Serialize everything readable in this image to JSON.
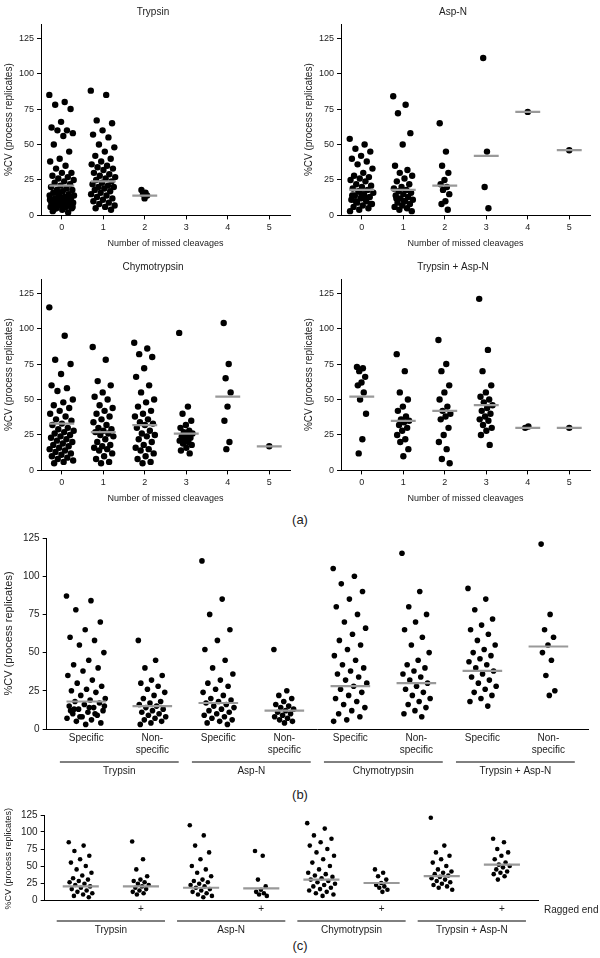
{
  "panel_labels": [
    "(a)",
    "(b)",
    "(c)"
  ],
  "chart_data": [
    {
      "type": "scatter",
      "title": "Trypsin",
      "x_label": "Number of missed cleavages",
      "y_label": "%CV (process replicates)",
      "xlim": [
        -0.5,
        5.5
      ],
      "xticks": [
        0,
        1,
        2,
        3,
        4,
        5
      ],
      "ylim": [
        0,
        135
      ],
      "yticks": [
        0,
        25,
        50,
        75,
        100,
        125
      ],
      "color": "#000000",
      "x": [
        0,
        1,
        2
      ],
      "values": [
        [
          85,
          80,
          78,
          75,
          66,
          62,
          60,
          60,
          58,
          56,
          50,
          45,
          40,
          38,
          35,
          33,
          30,
          30,
          28,
          27,
          26,
          25,
          24,
          23,
          22,
          21,
          20,
          19,
          18,
          18,
          17,
          16,
          15,
          15,
          14,
          13,
          12,
          12,
          11,
          10,
          10,
          9,
          9,
          8,
          8,
          7,
          7,
          6,
          6,
          5,
          5,
          4,
          3,
          2,
          15,
          14,
          13,
          12,
          11,
          10,
          9,
          8,
          7,
          6,
          5,
          4,
          13,
          12,
          11,
          10,
          9,
          8
        ],
        [
          88,
          85,
          67,
          65,
          60,
          57,
          55,
          50,
          48,
          45,
          42,
          40,
          38,
          36,
          35,
          34,
          33,
          32,
          30,
          29,
          28,
          27,
          26,
          25,
          24,
          23,
          22,
          21,
          20,
          20,
          19,
          18,
          17,
          16,
          15,
          14,
          13,
          12,
          11,
          10,
          9,
          8,
          7,
          6,
          5,
          4
        ],
        [
          18,
          16,
          15,
          14,
          12
        ]
      ],
      "means": [
        21,
        24,
        14
      ]
    },
    {
      "type": "scatter",
      "title": "Asp-N",
      "x_label": "Number of missed cleavages",
      "y_label": "%CV (process replicates)",
      "xlim": [
        -0.5,
        5.5
      ],
      "xticks": [
        0,
        1,
        2,
        3,
        4,
        5
      ],
      "ylim": [
        0,
        135
      ],
      "yticks": [
        0,
        25,
        50,
        75,
        100,
        125
      ],
      "color": "#000000",
      "x": [
        0,
        1,
        2,
        3,
        4,
        5
      ],
      "values": [
        [
          54,
          50,
          47,
          45,
          42,
          40,
          38,
          36,
          33,
          30,
          28,
          27,
          26,
          25,
          24,
          22,
          21,
          20,
          19,
          18,
          17,
          16,
          15,
          14,
          13,
          12,
          11,
          10,
          9,
          8,
          7,
          6,
          5,
          4,
          3,
          12,
          10,
          8,
          15,
          14
        ],
        [
          84,
          78,
          72,
          58,
          50,
          35,
          32,
          30,
          28,
          26,
          24,
          22,
          20,
          19,
          18,
          17,
          16,
          15,
          14,
          13,
          12,
          11,
          10,
          9,
          8,
          7,
          6,
          5,
          4,
          3,
          10,
          12
        ],
        [
          65,
          45,
          35,
          30,
          25,
          22,
          20,
          18,
          15,
          10,
          8,
          4
        ],
        [
          111,
          45,
          20,
          5
        ],
        [
          73
        ],
        [
          46
        ]
      ],
      "means": [
        18,
        18,
        21,
        42,
        73,
        46
      ]
    },
    {
      "type": "scatter",
      "title": "Chymotrypsin",
      "x_label": "Number of missed cleavages",
      "y_label": "%CV (process replicates)",
      "xlim": [
        -0.5,
        5.5
      ],
      "xticks": [
        0,
        1,
        2,
        3,
        4,
        5
      ],
      "ylim": [
        0,
        135
      ],
      "yticks": [
        0,
        25,
        50,
        75,
        100,
        125
      ],
      "color": "#000000",
      "x": [
        0,
        1,
        2,
        3,
        4,
        5
      ],
      "values": [
        [
          115,
          95,
          78,
          75,
          68,
          60,
          58,
          56,
          50,
          48,
          46,
          44,
          42,
          40,
          38,
          36,
          35,
          33,
          32,
          30,
          29,
          28,
          27,
          26,
          25,
          24,
          23,
          22,
          21,
          20,
          19,
          18,
          17,
          16,
          15,
          14,
          13,
          12,
          11,
          10,
          9,
          8,
          7,
          6,
          5
        ],
        [
          87,
          78,
          63,
          60,
          55,
          52,
          50,
          46,
          44,
          42,
          40,
          38,
          36,
          34,
          32,
          30,
          29,
          28,
          27,
          26,
          25,
          24,
          22,
          20,
          18,
          17,
          16,
          15,
          14,
          12,
          10,
          8,
          6,
          5
        ],
        [
          90,
          86,
          82,
          80,
          72,
          66,
          60,
          55,
          50,
          48,
          45,
          42,
          40,
          38,
          36,
          34,
          33,
          32,
          30,
          28,
          26,
          25,
          24,
          22,
          20,
          18,
          16,
          15,
          14,
          12,
          10,
          8,
          6,
          5
        ],
        [
          97,
          45,
          40,
          35,
          32,
          30,
          28,
          27,
          26,
          25,
          24,
          23,
          22,
          21,
          20,
          19,
          18,
          16,
          14,
          12
        ],
        [
          104,
          75,
          65,
          55,
          45,
          35,
          20,
          15
        ],
        [
          17
        ]
      ],
      "means": [
        33,
        27,
        32,
        26,
        52,
        17
      ]
    },
    {
      "type": "scatter",
      "title": "Trypsin + Asp-N",
      "x_label": "Number of missed cleavages",
      "y_label": "%CV (process replicates)",
      "xlim": [
        -0.5,
        5.5
      ],
      "xticks": [
        0,
        1,
        2,
        3,
        4,
        5
      ],
      "ylim": [
        0,
        135
      ],
      "yticks": [
        0,
        25,
        50,
        75,
        100,
        125
      ],
      "color": "#000000",
      "x": [
        0,
        1,
        2,
        3,
        4,
        5
      ],
      "values": [
        [
          73,
          72,
          70,
          66,
          62,
          60,
          55,
          50,
          40,
          22,
          12
        ],
        [
          82,
          70,
          55,
          50,
          45,
          42,
          38,
          36,
          35,
          34,
          32,
          30,
          28,
          25,
          22,
          20,
          15,
          10
        ],
        [
          92,
          75,
          70,
          60,
          55,
          50,
          45,
          42,
          40,
          38,
          36,
          30,
          25,
          20,
          15,
          8,
          5
        ],
        [
          121,
          85,
          70,
          60,
          55,
          52,
          50,
          48,
          46,
          44,
          42,
          40,
          38,
          36,
          35,
          32,
          30,
          28,
          25,
          18
        ],
        [
          30,
          31
        ],
        [
          30
        ]
      ],
      "means": [
        52,
        35,
        42,
        46,
        30,
        30
      ]
    },
    {
      "type": "scatter",
      "y_label": "%CV (process replicates)",
      "categories": [
        "Specific",
        "Non-specific",
        "Specific",
        "Non-specific",
        "Specific",
        "Non-specific",
        "Specific",
        "Non-specific"
      ],
      "groups": [
        "Trypsin",
        "Asp-N",
        "Chymotrypsin",
        "Trypsin + Asp-N"
      ],
      "ylim": [
        0,
        125
      ],
      "yticks": [
        0,
        25,
        50,
        75,
        100,
        125
      ],
      "color": "#000000",
      "values": [
        [
          87,
          84,
          78,
          70,
          65,
          60,
          58,
          55,
          50,
          45,
          42,
          40,
          38,
          35,
          32,
          30,
          28,
          26,
          25,
          24,
          22,
          20,
          19,
          18,
          17,
          16,
          15,
          14,
          13,
          12,
          11,
          10,
          9,
          8,
          7,
          6,
          5,
          4,
          3,
          12,
          10,
          8,
          15,
          14,
          13
        ],
        [
          58,
          45,
          40,
          35,
          32,
          30,
          28,
          26,
          24,
          22,
          20,
          18,
          17,
          16,
          15,
          14,
          13,
          12,
          11,
          10,
          9,
          8,
          7,
          6,
          5,
          4,
          3
        ],
        [
          110,
          85,
          75,
          65,
          58,
          52,
          45,
          40,
          36,
          32,
          30,
          28,
          26,
          24,
          22,
          20,
          19,
          18,
          17,
          16,
          15,
          14,
          13,
          12,
          11,
          10,
          9,
          8,
          7,
          6,
          5,
          4,
          3
        ],
        [
          52,
          25,
          22,
          20,
          18,
          16,
          15,
          14,
          13,
          12,
          11,
          10,
          9,
          8,
          7,
          6,
          5,
          4
        ],
        [
          105,
          100,
          95,
          90,
          85,
          80,
          75,
          70,
          66,
          62,
          58,
          55,
          52,
          48,
          45,
          42,
          40,
          38,
          36,
          34,
          32,
          30,
          28,
          26,
          24,
          22,
          20,
          18,
          16,
          14,
          12,
          10,
          8,
          6,
          5
        ],
        [
          115,
          90,
          80,
          75,
          70,
          65,
          60,
          55,
          50,
          45,
          42,
          40,
          38,
          36,
          34,
          32,
          30,
          28,
          26,
          24,
          22,
          20,
          18,
          16,
          14,
          12,
          10,
          8
        ],
        [
          92,
          85,
          78,
          72,
          68,
          65,
          62,
          58,
          55,
          52,
          50,
          48,
          46,
          44,
          42,
          40,
          38,
          36,
          34,
          32,
          30,
          28,
          26,
          24,
          22,
          20,
          18,
          15
        ],
        [
          121,
          75,
          65,
          60,
          55,
          50,
          45,
          35,
          25,
          22
        ]
      ],
      "means": [
        18,
        15,
        17,
        12,
        28,
        30,
        38,
        54
      ]
    },
    {
      "type": "scatter",
      "y_label": "%CV (process replicates)",
      "x_label": "Ragged end",
      "categories": [
        null,
        "+",
        null,
        "+",
        null,
        "+",
        null,
        "+"
      ],
      "groups": [
        "Trypsin",
        "Asp-N",
        "Chymotrypsin",
        "Trypsin + Asp-N"
      ],
      "ylim": [
        0,
        125
      ],
      "yticks": [
        0,
        25,
        50,
        75,
        100,
        125
      ],
      "color": "#000000",
      "values": [
        [
          85,
          80,
          72,
          65,
          60,
          55,
          50,
          45,
          40,
          36,
          32,
          30,
          28,
          26,
          24,
          22,
          20,
          18,
          16,
          14,
          12,
          10,
          8,
          6,
          4
        ],
        [
          86,
          60,
          45,
          35,
          30,
          28,
          26,
          24,
          22,
          20,
          18,
          16,
          14,
          12,
          10,
          8
        ],
        [
          110,
          95,
          80,
          70,
          60,
          50,
          45,
          40,
          35,
          30,
          28,
          26,
          24,
          22,
          20,
          18,
          16,
          14,
          12,
          10,
          8,
          6,
          4
        ],
        [
          72,
          65,
          30,
          20,
          15,
          12,
          10,
          8,
          6
        ],
        [
          113,
          105,
          95,
          90,
          85,
          80,
          75,
          70,
          65,
          60,
          55,
          50,
          45,
          40,
          38,
          36,
          34,
          32,
          30,
          28,
          26,
          24,
          22,
          20,
          18,
          16,
          14,
          12,
          10,
          8,
          6
        ],
        [
          45,
          40,
          35,
          30,
          25,
          22,
          20,
          18,
          15,
          12
        ],
        [
          121,
          80,
          70,
          65,
          60,
          55,
          50,
          45,
          42,
          40,
          38,
          36,
          34,
          32,
          30,
          28,
          26,
          24,
          22,
          20,
          18,
          15
        ],
        [
          90,
          85,
          75,
          70,
          65,
          60,
          55,
          52,
          50,
          48,
          45,
          42,
          40,
          38,
          35,
          30
        ]
      ],
      "means": [
        20,
        20,
        18,
        17,
        30,
        25,
        35,
        52
      ]
    }
  ]
}
